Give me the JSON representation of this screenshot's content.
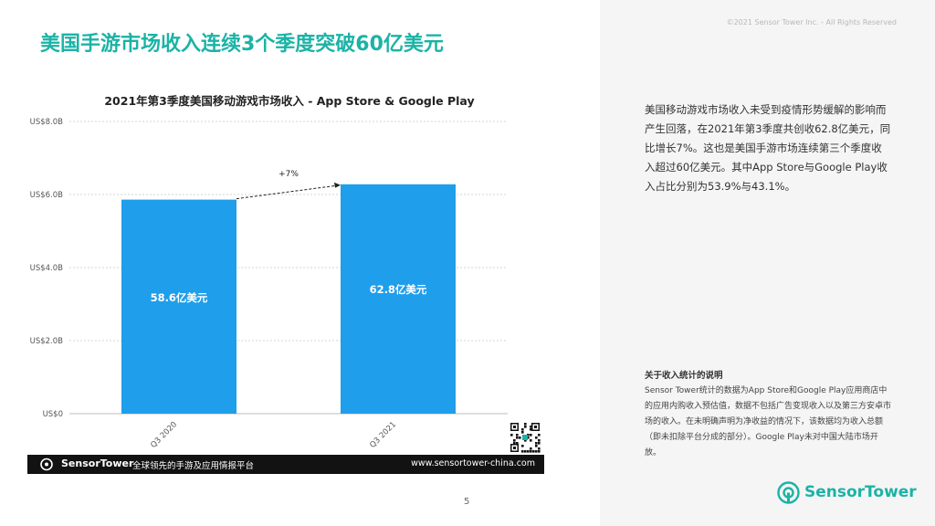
{
  "copyright": "©2021 Sensor Tower Inc. - All Rights Reserved",
  "page_title": "美国手游市场收入连续3个季度突破60亿美元",
  "chart_data": {
    "type": "bar",
    "title": "2021年第3季度美国移动游戏市场收入 - App Store & Google Play",
    "categories": [
      "Q3 2020",
      "Q3 2021"
    ],
    "values": [
      5.86,
      6.28
    ],
    "data_labels": [
      "58.6亿美元",
      "62.8亿美元"
    ],
    "ylim": [
      0,
      8
    ],
    "yticks": [
      {
        "value": 0,
        "label": "US$0"
      },
      {
        "value": 2,
        "label": "US$2.0B"
      },
      {
        "value": 4,
        "label": "US$4.0B"
      },
      {
        "value": 6,
        "label": "US$6.0B"
      },
      {
        "value": 8,
        "label": "US$8.0B"
      }
    ],
    "annotation": "+7%",
    "bar_color": "#1f9eeb",
    "grid": true
  },
  "footer": {
    "brand": "SensorTower",
    "tagline": "全球领先的手游及应用情报平台",
    "url": "www.sensortower-china.com"
  },
  "page_number": "5",
  "summary": "美国移动游戏市场收入未受到疫情形势缓解的影响而产生回落，在2021年第3季度共创收62.8亿美元，同比增长7%。这也是美国手游市场连续第三个季度收入超过60亿美元。其中App Store与Google Play收入占比分别为53.9%与43.1%。",
  "note": {
    "title": "关于收入统计的说明",
    "body": "Sensor Tower统计的数据为App Store和Google Play应用商店中的应用内购收入预估值，数据不包括广告变现收入以及第三方安卓市场的收入。在未明确声明为净收益的情况下，该数据均为收入总额（即未扣除平台分成的部分）。Google Play未对中国大陆市场开放。"
  },
  "brand_logo": "SensorTower",
  "colors": {
    "accent": "#1bb3a6",
    "bar": "#1f9eeb"
  }
}
